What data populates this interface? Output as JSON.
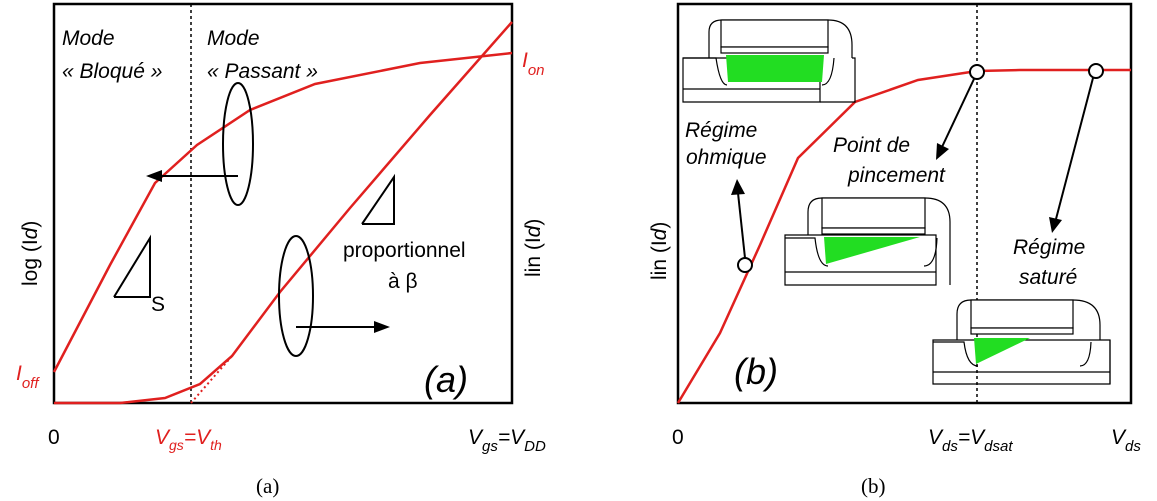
{
  "panel_a": {
    "ylabel_left": "log (I",
    "ylabel_left_sub": "d",
    "ylabel_right": "lin (I",
    "ylabel_right_sub": "d",
    "mode_blocked_1": "Mode",
    "mode_blocked_2": "« Bloqué »",
    "mode_on_1": "Mode",
    "mode_on_2": "« Passant »",
    "ion": "I",
    "ion_sub": "on",
    "ioff": "I",
    "ioff_sub": "off",
    "slope_label": "S",
    "prop_1": "proportionnel",
    "prop_2": "à β",
    "panel_tag": "(a)",
    "x_zero": "0",
    "x_vth_a": "V",
    "x_vth_a_sub": "gs",
    "x_vth_eq": "=V",
    "x_vth_b_sub": "th",
    "x_vdd_a": "V",
    "x_vdd_a_sub": "gs",
    "x_vdd_eq": "=V",
    "x_vdd_b_sub": "DD",
    "caption": "(a)"
  },
  "panel_b": {
    "ylabel": "lin (I",
    "ylabel_sub": "d",
    "ohmic_1": "Régime",
    "ohmic_2": "ohmique",
    "pinch_1": "Point de",
    "pinch_2": "pincement",
    "sat_1": "Régime",
    "sat_2": "saturé",
    "panel_tag": "(b)",
    "x_zero": "0",
    "x_vdsat_a": "V",
    "x_vdsat_a_sub": "ds",
    "x_vdsat_eq": "=V",
    "x_vdsat_b_sub": "dsat",
    "x_vds": "V",
    "x_vds_sub": "ds",
    "caption": "(b)"
  },
  "colors": {
    "curve": "#e0201f",
    "channel": "#22dd22",
    "axis": "#000000"
  }
}
